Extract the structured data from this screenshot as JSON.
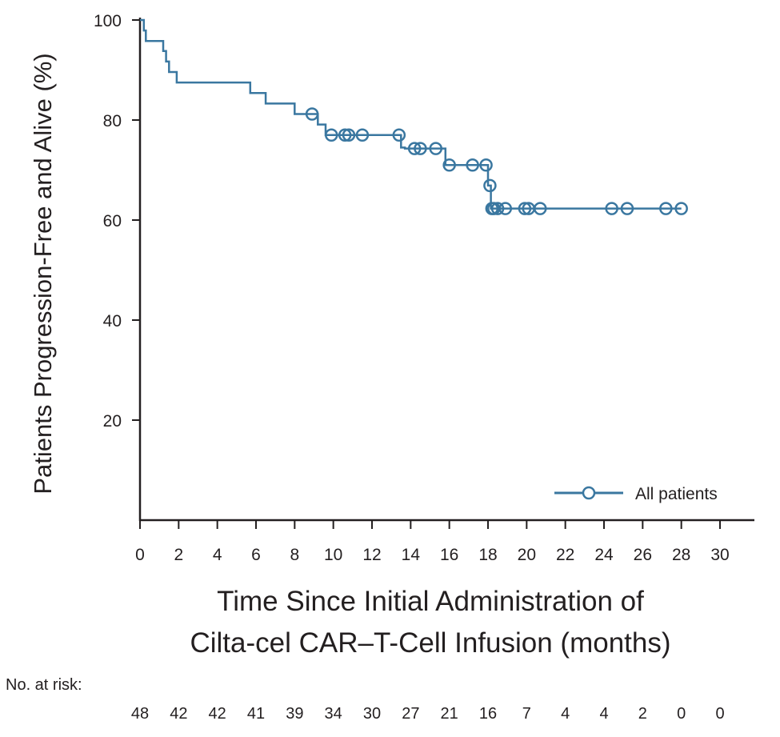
{
  "chart_data": {
    "type": "line",
    "title": "",
    "xlabel_lines": [
      "Time Since Initial Administration of",
      "Cilta-cel CAR–T-Cell Infusion (months)"
    ],
    "ylabel": "Patients Progression-Free and Alive (%)",
    "xlim": [
      0,
      31.5
    ],
    "ylim": [
      0,
      100
    ],
    "x_ticks": [
      0,
      2,
      4,
      6,
      8,
      10,
      12,
      14,
      16,
      18,
      20,
      22,
      24,
      26,
      28,
      30
    ],
    "y_ticks": [
      20,
      40,
      60,
      80,
      100
    ],
    "color": "#3a77a0",
    "legend": {
      "label": "All patients",
      "position": "bottom-right"
    },
    "series": [
      {
        "name": "All patients",
        "step_points": [
          [
            0,
            100
          ],
          [
            0.2,
            100
          ],
          [
            0.2,
            97.9
          ],
          [
            0.3,
            97.9
          ],
          [
            0.3,
            95.8
          ],
          [
            1.2,
            95.8
          ],
          [
            1.2,
            93.8
          ],
          [
            1.35,
            93.8
          ],
          [
            1.35,
            91.7
          ],
          [
            1.5,
            91.7
          ],
          [
            1.5,
            89.6
          ],
          [
            1.9,
            89.6
          ],
          [
            1.9,
            87.5
          ],
          [
            5.7,
            87.5
          ],
          [
            5.7,
            85.4
          ],
          [
            6.5,
            85.4
          ],
          [
            6.5,
            83.3
          ],
          [
            8.0,
            83.3
          ],
          [
            8.0,
            81.2
          ],
          [
            9.2,
            81.2
          ],
          [
            9.2,
            79.1
          ],
          [
            9.6,
            79.1
          ],
          [
            9.6,
            77.0
          ],
          [
            13.5,
            77.0
          ],
          [
            13.5,
            74.5
          ],
          [
            13.7,
            74.5
          ],
          [
            13.7,
            74.3
          ],
          [
            15.8,
            74.3
          ],
          [
            15.8,
            71.0
          ],
          [
            18.0,
            71.0
          ],
          [
            18.0,
            66.9
          ],
          [
            18.15,
            66.9
          ],
          [
            18.15,
            62.3
          ],
          [
            28.0,
            62.3
          ]
        ],
        "censored": [
          [
            8.9,
            81.2
          ],
          [
            9.9,
            77.0
          ],
          [
            10.6,
            77.0
          ],
          [
            10.8,
            77.0
          ],
          [
            11.5,
            77.0
          ],
          [
            13.4,
            77.0
          ],
          [
            14.2,
            74.3
          ],
          [
            14.5,
            74.3
          ],
          [
            15.3,
            74.3
          ],
          [
            16.0,
            71.0
          ],
          [
            17.2,
            71.0
          ],
          [
            17.9,
            71.0
          ],
          [
            18.1,
            66.9
          ],
          [
            18.2,
            62.3
          ],
          [
            18.3,
            62.3
          ],
          [
            18.5,
            62.3
          ],
          [
            18.9,
            62.3
          ],
          [
            19.9,
            62.3
          ],
          [
            20.1,
            62.3
          ],
          [
            20.7,
            62.3
          ],
          [
            24.4,
            62.3
          ],
          [
            25.2,
            62.3
          ],
          [
            27.2,
            62.3
          ],
          [
            28.0,
            62.3
          ]
        ]
      }
    ],
    "at_risk": {
      "title": "No. at risk:",
      "values": [
        "48",
        "42",
        "42",
        "41",
        "39",
        "34",
        "30",
        "27",
        "21",
        "16",
        "7",
        "4",
        "4",
        "2",
        "0",
        "0"
      ]
    }
  }
}
